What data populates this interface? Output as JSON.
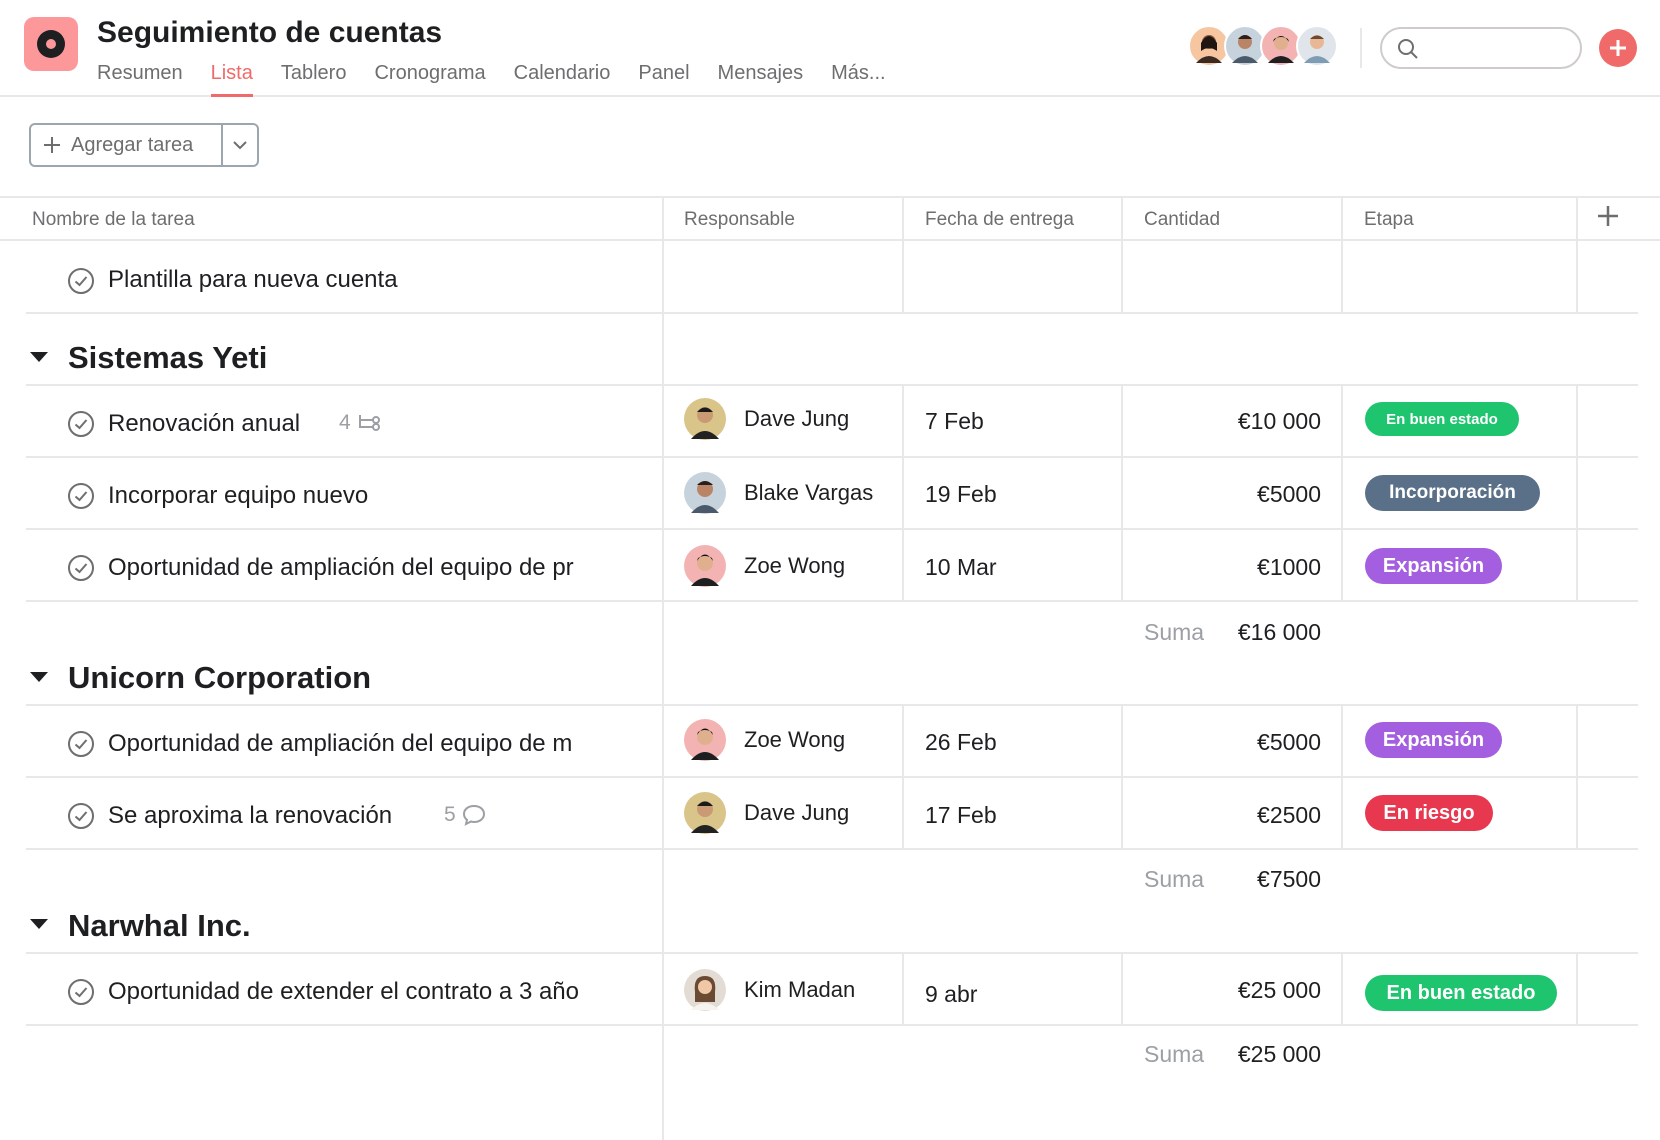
{
  "project": {
    "title": "Seguimiento de cuentas",
    "icon": "target-icon",
    "accent": "#f06a6a"
  },
  "tabs": [
    "Resumen",
    "Lista",
    "Tablero",
    "Cronograma",
    "Calendario",
    "Panel",
    "Mensajes",
    "Más..."
  ],
  "active_tab": "Lista",
  "search": {
    "placeholder": "",
    "value": ""
  },
  "toolbar": {
    "add_task_label": "Agregar tarea"
  },
  "columns": {
    "task": "Nombre de la tarea",
    "assignee": "Responsable",
    "due": "Fecha de entrega",
    "amount": "Cantidad",
    "stage": "Etapa"
  },
  "template_row": {
    "name": "Plantilla para nueva cuenta"
  },
  "sections": [
    {
      "title": "Sistemas Yeti",
      "sum_label": "Suma",
      "sum_value": "€16 000",
      "rows": [
        {
          "name": "Renovación anual",
          "meta_count": "4",
          "meta_icon": "subtask-icon",
          "assignee": "Dave Jung",
          "due": "7 Feb",
          "amount": "€10 000",
          "stage": "En buen estado",
          "stage_color": "#1fc46e"
        },
        {
          "name": "Incorporar equipo nuevo",
          "meta_count": "",
          "meta_icon": "",
          "assignee": "Blake Vargas",
          "due": "19 Feb",
          "amount": "€5000",
          "stage": "Incorporación",
          "stage_color": "#5a7089"
        },
        {
          "name": "Oportunidad de ampliación del equipo de pr",
          "meta_count": "",
          "meta_icon": "",
          "assignee": "Zoe Wong",
          "due": "10 Mar",
          "amount": "€1000",
          "stage": "Expansión",
          "stage_color": "#a35fe0"
        }
      ]
    },
    {
      "title": "Unicorn Corporation",
      "sum_label": "Suma",
      "sum_value": "€7500",
      "rows": [
        {
          "name": "Oportunidad de ampliación del equipo de m",
          "meta_count": "",
          "meta_icon": "",
          "assignee": "Zoe Wong",
          "due": "26 Feb",
          "amount": "€5000",
          "stage": "Expansión",
          "stage_color": "#a35fe0"
        },
        {
          "name": "Se aproxima la renovación",
          "meta_count": "5",
          "meta_icon": "comment-icon",
          "assignee": "Dave Jung",
          "due": "17 Feb",
          "amount": "€2500",
          "stage": "En riesgo",
          "stage_color": "#e8384f"
        }
      ]
    },
    {
      "title": "Narwhal Inc.",
      "sum_label": "Suma",
      "sum_value": "€25 000",
      "rows": [
        {
          "name": "Oportunidad de extender el contrato a 3 año",
          "meta_count": "",
          "meta_icon": "",
          "assignee": "Kim Madan",
          "due": "9 abr",
          "amount": "€25 000",
          "stage": "En buen estado",
          "stage_color": "#1fc46e"
        }
      ]
    }
  ]
}
